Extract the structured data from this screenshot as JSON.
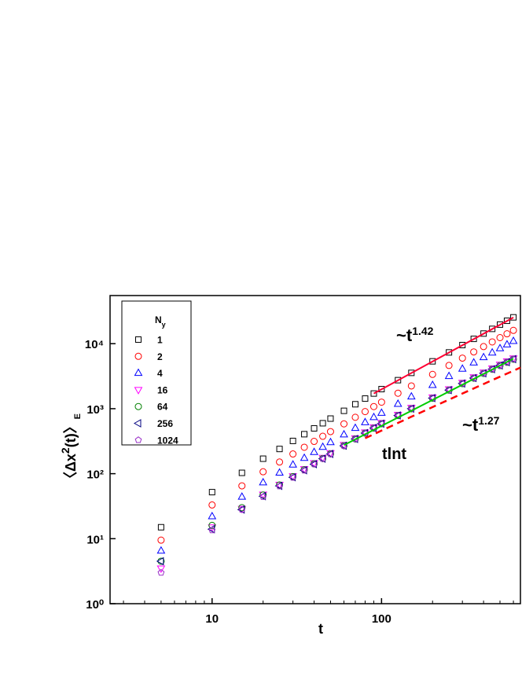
{
  "chart_data": {
    "type": "scatter",
    "x_label": "t",
    "y_label": {
      "main": "〈Δx",
      "sup": "2",
      "rest": "(t)〉",
      "sub": "E"
    },
    "log_x": true,
    "log_y": true,
    "xlim": [
      2.5,
      660
    ],
    "ylim": [
      1,
      55000
    ],
    "xticks": [
      10,
      100
    ],
    "xminorticks": [
      3,
      4,
      5,
      6,
      7,
      8,
      9,
      20,
      30,
      40,
      50,
      60,
      70,
      80,
      90,
      200,
      300,
      400,
      500,
      600
    ],
    "yticks": [
      {
        "value": 1,
        "label": "10⁰"
      },
      {
        "value": 10,
        "label": "10¹"
      },
      {
        "value": 100,
        "label": "10²"
      },
      {
        "value": 1000,
        "label": "10³"
      },
      {
        "value": 10000,
        "label": "10⁴"
      }
    ],
    "legend": {
      "title": "N",
      "title_sub": "y",
      "position": "upper left"
    },
    "x": [
      5,
      10,
      15,
      20,
      25,
      30,
      35,
      40,
      45,
      50,
      60,
      70,
      80,
      90,
      100,
      125,
      150,
      200,
      250,
      300,
      350,
      400,
      450,
      500,
      550,
      600
    ],
    "series": [
      {
        "name": "1",
        "color": "#000000",
        "marker": "square",
        "values": [
          15,
          52,
          103,
          170,
          240,
          319,
          405,
          498,
          597,
          704,
          927,
          1170,
          1432,
          1711,
          2000,
          2746,
          3556,
          5352,
          7340,
          9520,
          11860,
          14320,
          16900,
          19680,
          22520,
          25440
        ]
      },
      {
        "name": "2",
        "color": "#ff0000",
        "marker": "circle",
        "values": [
          9.5,
          33,
          65,
          107,
          151,
          201,
          255,
          314,
          376,
          444,
          584,
          737,
          902,
          1078,
          1260,
          1730,
          2240,
          3372,
          4624,
          5998,
          7472,
          9022,
          10647,
          12398,
          14188,
          16027
        ]
      },
      {
        "name": "4",
        "color": "#0000ff",
        "marker": "triangle-up",
        "values": [
          6.5,
          22,
          44,
          73,
          103,
          137,
          174,
          214,
          257,
          303,
          399,
          503,
          616,
          736,
          860,
          1181,
          1529,
          2301,
          3156,
          4094,
          5100,
          6158,
          7267,
          8462,
          9684,
          10939
        ]
      },
      {
        "name": "16",
        "color": "#ff00ff",
        "marker": "triangle-down",
        "values": [
          3.5,
          15,
          29,
          48,
          68,
          92,
          118,
          146,
          176,
          208,
          278,
          353,
          434,
          520,
          606,
          810,
          1035,
          1500,
          2000,
          2520,
          3060,
          3620,
          4190,
          4780,
          5370,
          5980
        ]
      },
      {
        "name": "64",
        "color": "#008000",
        "marker": "circle",
        "values": [
          4.5,
          16,
          30,
          47,
          67,
          90,
          115,
          142,
          171,
          202,
          270,
          343,
          421,
          503,
          588,
          784,
          998,
          1450,
          1930,
          2430,
          2950,
          3490,
          4040,
          4610,
          5180,
          5770
        ]
      },
      {
        "name": "256",
        "color": "#000080",
        "marker": "triangle-left",
        "values": [
          4.5,
          14,
          28,
          45,
          65,
          88,
          113,
          140,
          170,
          201,
          269,
          342,
          421,
          504,
          588,
          786,
          1000,
          1455,
          1935,
          2440,
          2960,
          3500,
          4050,
          4620,
          5200,
          5790
        ]
      },
      {
        "name": "1024",
        "color": "#9a30c8",
        "marker": "pentagon",
        "values": [
          3,
          13.5,
          28,
          44,
          64,
          87,
          112,
          140,
          169,
          200,
          268,
          341,
          420,
          503,
          587,
          785,
          998,
          1452,
          1932,
          2436,
          2955,
          3495,
          4045,
          4615,
          5190,
          5780
        ]
      }
    ],
    "fits": [
      {
        "color": "#ff0033",
        "style": "solid",
        "x": [
          90,
          600
        ],
        "y": [
          1711,
          25300
        ]
      },
      {
        "color": "#00cc00",
        "style": "solid",
        "x": [
          60,
          600
        ],
        "y": [
          275,
          5880
        ]
      },
      {
        "color": "#ff0000",
        "style": "dashed",
        "x": [
          80,
          150,
          300,
          450,
          660
        ],
        "y": [
          351,
          752,
          1711,
          2749,
          4284
        ]
      }
    ],
    "annotations": [
      {
        "text": "~t",
        "sup": "1.42",
        "color": "#000000"
      },
      {
        "text": "~t",
        "sup": "1.27",
        "color": "#000000"
      },
      {
        "text": "tlnt",
        "color": "#ff0000"
      }
    ]
  }
}
